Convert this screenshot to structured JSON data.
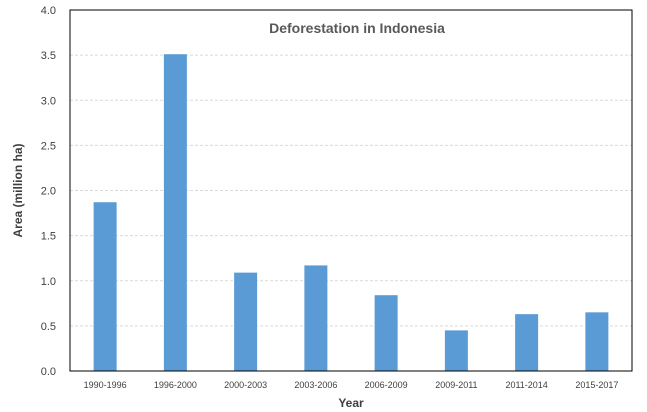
{
  "chart_data": {
    "type": "bar",
    "title": "Deforestation in Indonesia",
    "xlabel": "Year",
    "ylabel": "Area (million ha)",
    "categories": [
      "1990-1996",
      "1996-2000",
      "2000-2003",
      "2003-2006",
      "2006-2009",
      "2009-2011",
      "2011-2014",
      "2015-2017"
    ],
    "values": [
      1.87,
      3.51,
      1.09,
      1.17,
      0.84,
      0.45,
      0.63,
      0.65
    ],
    "ylim": [
      0,
      4.0
    ],
    "yticks": [
      "0.0",
      "0.5",
      "1.0",
      "1.5",
      "2.0",
      "2.5",
      "3.0",
      "3.5",
      "4.0"
    ],
    "grid": true,
    "legend": "none",
    "colors": {
      "bar": "#5b9bd5",
      "grid": "#d9d9d9",
      "axis": "#000000"
    }
  }
}
